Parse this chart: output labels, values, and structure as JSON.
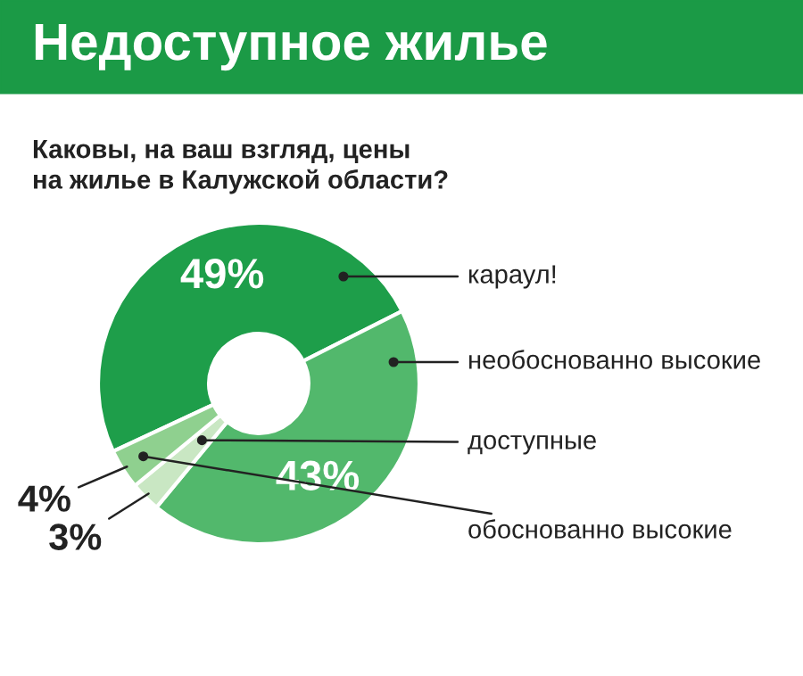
{
  "chart_data": {
    "type": "donut",
    "title": "Недоступное жилье",
    "subtitle": "Каковы, на ваш взгляд, цены\nна жилье в Калужской области?",
    "categories": [
      "караул!",
      "необоснованно высокие",
      "доступные",
      "обоснованно высокие"
    ],
    "values": [
      49,
      43,
      3,
      4
    ],
    "colors": [
      "#1e9e4a",
      "#52b86c",
      "#c9e7c3",
      "#8fd08f"
    ],
    "value_labels": [
      "49%",
      "43%",
      "3%",
      "4%"
    ],
    "legend": false
  }
}
